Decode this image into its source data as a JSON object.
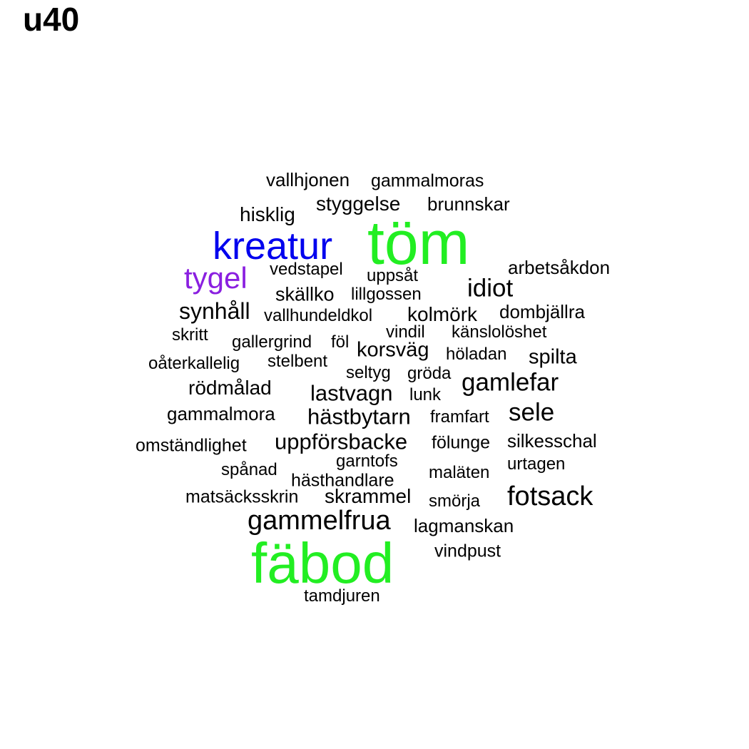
{
  "title": "u40",
  "colors": {
    "default": "#000000",
    "green": "#22ee22",
    "blue": "#0000ee",
    "purple": "#8a1fe0"
  },
  "words": [
    {
      "text": "vallhjonen",
      "color": "default"
    },
    {
      "text": "gammalmoras",
      "color": "default"
    },
    {
      "text": "styggelse",
      "color": "default"
    },
    {
      "text": "brunnskar",
      "color": "default"
    },
    {
      "text": "hisklig",
      "color": "default"
    },
    {
      "text": "töm",
      "color": "green"
    },
    {
      "text": "kreatur",
      "color": "blue"
    },
    {
      "text": "arbetsåkdon",
      "color": "default"
    },
    {
      "text": "tygel",
      "color": "purple"
    },
    {
      "text": "vedstapel",
      "color": "default"
    },
    {
      "text": "uppsåt",
      "color": "default"
    },
    {
      "text": "idiot",
      "color": "default"
    },
    {
      "text": "skällko",
      "color": "default"
    },
    {
      "text": "lillgossen",
      "color": "default"
    },
    {
      "text": "synhåll",
      "color": "default"
    },
    {
      "text": "vallhundeldkol",
      "color": "default"
    },
    {
      "text": "kolmörk",
      "color": "default"
    },
    {
      "text": "dombjällra",
      "color": "default"
    },
    {
      "text": "skritt",
      "color": "default"
    },
    {
      "text": "vindil",
      "color": "default"
    },
    {
      "text": "känslolöshet",
      "color": "default"
    },
    {
      "text": "gallergrind",
      "color": "default"
    },
    {
      "text": "föl",
      "color": "default"
    },
    {
      "text": "korsväg",
      "color": "default"
    },
    {
      "text": "höladan",
      "color": "default"
    },
    {
      "text": "spilta",
      "color": "default"
    },
    {
      "text": "oåterkallelig",
      "color": "default"
    },
    {
      "text": "stelbent",
      "color": "default"
    },
    {
      "text": "seltyg",
      "color": "default"
    },
    {
      "text": "gröda",
      "color": "default"
    },
    {
      "text": "gamlefar",
      "color": "default"
    },
    {
      "text": "rödmålad",
      "color": "default"
    },
    {
      "text": "lastvagn",
      "color": "default"
    },
    {
      "text": "lunk",
      "color": "default"
    },
    {
      "text": "gammalmora",
      "color": "default"
    },
    {
      "text": "hästbytarn",
      "color": "default"
    },
    {
      "text": "framfart",
      "color": "default"
    },
    {
      "text": "sele",
      "color": "default"
    },
    {
      "text": "omständlighet",
      "color": "default"
    },
    {
      "text": "uppförsbacke",
      "color": "default"
    },
    {
      "text": "fölunge",
      "color": "default"
    },
    {
      "text": "silkesschal",
      "color": "default"
    },
    {
      "text": "garntofs",
      "color": "default"
    },
    {
      "text": "spånad",
      "color": "default"
    },
    {
      "text": "urtagen",
      "color": "default"
    },
    {
      "text": "hästhandlare",
      "color": "default"
    },
    {
      "text": "maläten",
      "color": "default"
    },
    {
      "text": "matsäcksskrin",
      "color": "default"
    },
    {
      "text": "skrammel",
      "color": "default"
    },
    {
      "text": "smörja",
      "color": "default"
    },
    {
      "text": "fotsack",
      "color": "default"
    },
    {
      "text": "gammelfrua",
      "color": "default"
    },
    {
      "text": "lagmanskan",
      "color": "default"
    },
    {
      "text": "vindpust",
      "color": "default"
    },
    {
      "text": "fäbod",
      "color": "green"
    },
    {
      "text": "tamdjuren",
      "color": "default"
    }
  ]
}
